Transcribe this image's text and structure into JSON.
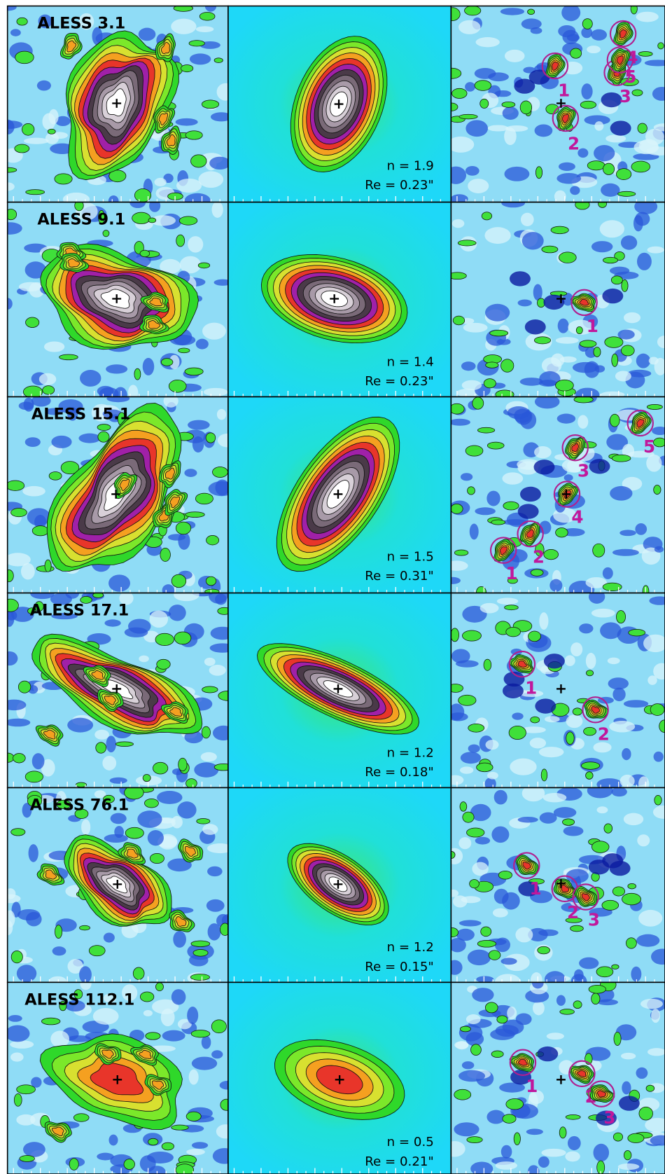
{
  "panels": [
    {
      "name": "ALESS 3.1",
      "n": "n = 1.9",
      "re": "Re = 0.23\"",
      "sources": [
        "1",
        "2",
        "3",
        "4",
        "5"
      ]
    },
    {
      "name": "ALESS 9.1",
      "n": "n = 1.4",
      "re": "Re = 0.23\"",
      "sources": [
        "1"
      ]
    },
    {
      "name": "ALESS 15.1",
      "n": "n = 1.5",
      "re": "Re = 0.31\"",
      "sources": [
        "1",
        "2",
        "3",
        "4",
        "5"
      ]
    },
    {
      "name": "ALESS 17.1",
      "n": "n = 1.2",
      "re": "Re = 0.18\"",
      "sources": [
        "1",
        "2"
      ]
    },
    {
      "name": "ALESS 76.1",
      "n": "n = 1.2",
      "re": "Re = 0.15\"",
      "sources": [
        "1",
        "2",
        "3"
      ]
    },
    {
      "name": "ALESS 112.1",
      "n": "n = 0.5",
      "re": "Re = 0.21\"",
      "sources": [
        "1",
        "2",
        "3"
      ]
    }
  ]
}
